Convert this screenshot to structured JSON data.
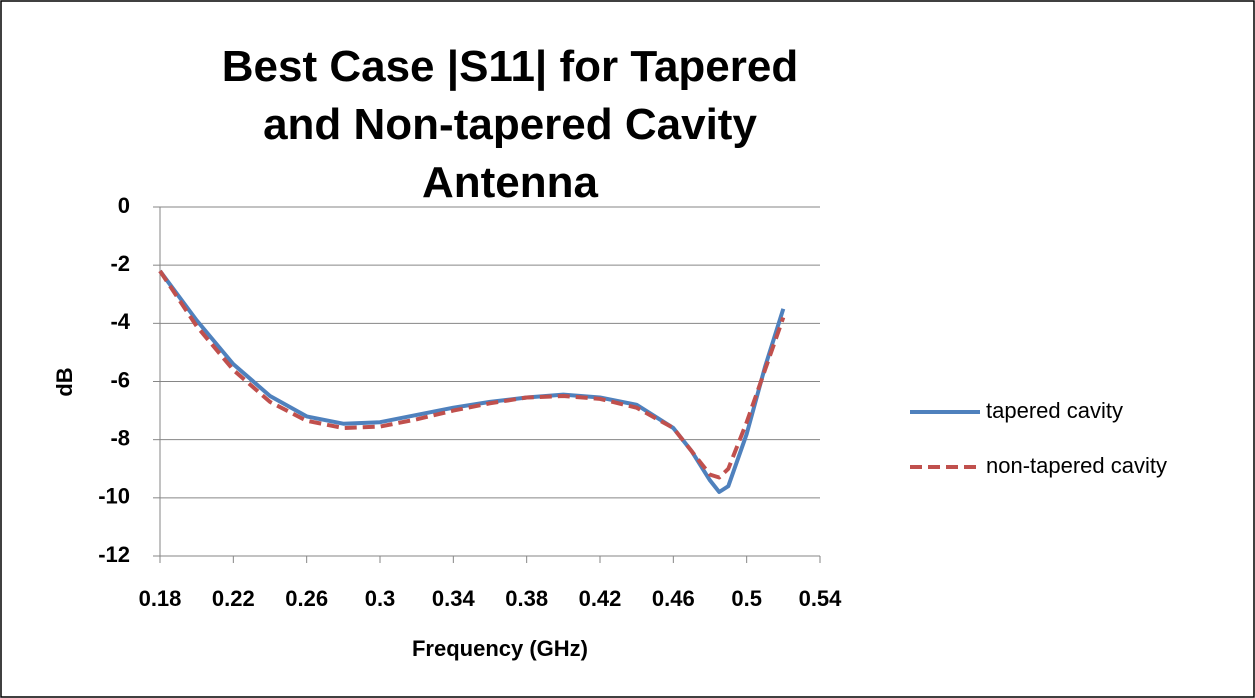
{
  "chart_data": {
    "type": "line",
    "title": "Best Case |S11| for Tapered and Non-tapered Cavity Antenna",
    "x_label": "Frequency (GHz)",
    "y_label": "dB",
    "x": [
      0.18,
      0.2,
      0.22,
      0.24,
      0.26,
      0.28,
      0.3,
      0.32,
      0.34,
      0.36,
      0.38,
      0.4,
      0.42,
      0.44,
      0.46,
      0.47,
      0.48,
      0.485,
      0.49,
      0.5,
      0.51,
      0.52
    ],
    "series": [
      {
        "name": "tapered cavity",
        "color": "#4f81bd",
        "dash": "solid",
        "values": [
          -2.2,
          -3.9,
          -5.4,
          -6.5,
          -7.2,
          -7.45,
          -7.4,
          -7.15,
          -6.9,
          -6.7,
          -6.55,
          -6.45,
          -6.55,
          -6.8,
          -7.6,
          -8.4,
          -9.4,
          -9.8,
          -9.6,
          -7.8,
          -5.5,
          -3.5
        ]
      },
      {
        "name": "non-tapered cavity",
        "color": "#c0504d",
        "dash": "dashed",
        "values": [
          -2.2,
          -4.1,
          -5.6,
          -6.7,
          -7.35,
          -7.6,
          -7.55,
          -7.3,
          -7.0,
          -6.75,
          -6.55,
          -6.5,
          -6.6,
          -6.9,
          -7.6,
          -8.4,
          -9.2,
          -9.3,
          -9.0,
          -7.4,
          -5.6,
          -3.8
        ]
      }
    ],
    "xlim": [
      0.18,
      0.54
    ],
    "xticks": [
      0.18,
      0.22,
      0.26,
      0.3,
      0.34,
      0.38,
      0.42,
      0.46,
      0.5,
      0.54
    ],
    "ylim": [
      -12,
      0
    ],
    "yticks": [
      0,
      -2,
      -4,
      -6,
      -8,
      -10,
      -12
    ],
    "grid": true,
    "legend": "right"
  }
}
